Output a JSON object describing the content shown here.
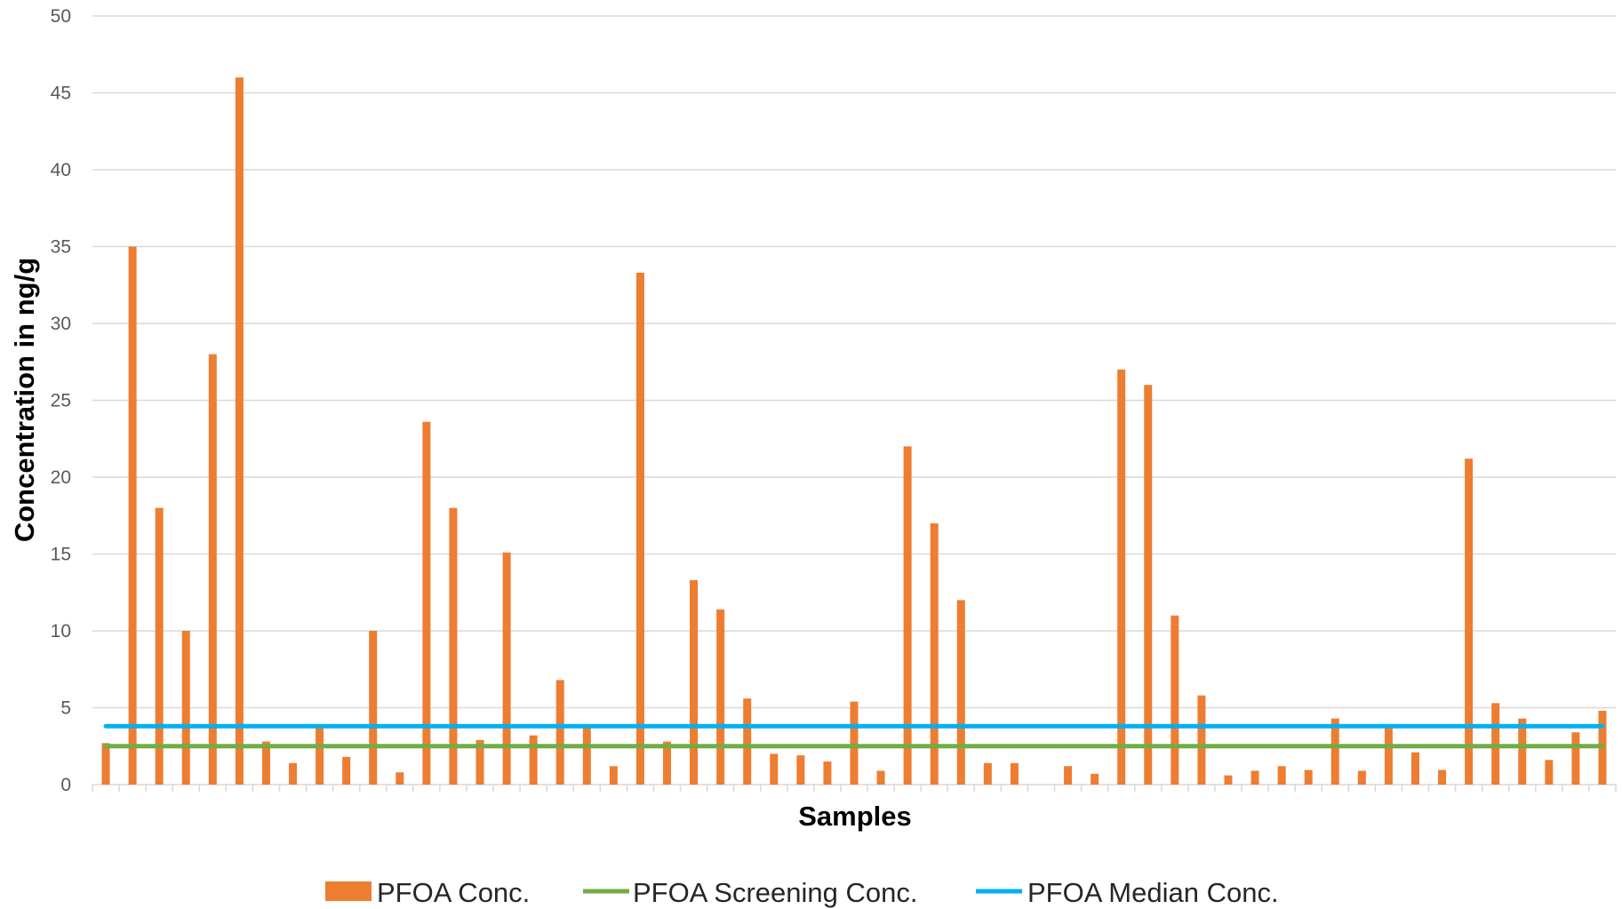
{
  "chart_data": {
    "type": "bar",
    "xlabel": "Samples",
    "ylabel": "Concentration in ng/g",
    "ylim": [
      0,
      50
    ],
    "yticks": [
      0,
      5,
      10,
      15,
      20,
      25,
      30,
      35,
      40,
      45,
      50
    ],
    "grid": "horizontal",
    "legend_position": "bottom",
    "series": [
      {
        "name": "PFOA Conc.",
        "kind": "bar",
        "color": "#ED7D31",
        "values": [
          2.7,
          35,
          18,
          10,
          28,
          46,
          2.8,
          1.4,
          3.7,
          1.8,
          10,
          0.8,
          23.6,
          18,
          2.9,
          15.1,
          3.2,
          6.8,
          3.7,
          1.2,
          33.3,
          2.8,
          13.3,
          11.4,
          5.6,
          2.0,
          1.9,
          1.5,
          5.4,
          0.9,
          22,
          17,
          12,
          1.4,
          1.4,
          0,
          1.2,
          0.7,
          27,
          26,
          11,
          5.8,
          0.6,
          0.9,
          1.2,
          0.95,
          4.3,
          0.9,
          3.8,
          2.1,
          0.95,
          21.2,
          5.3,
          4.3,
          1.6,
          3.4,
          4.8
        ]
      },
      {
        "name": "PFOA Screening Conc.",
        "kind": "line",
        "color": "#70AD47",
        "value": 2.5
      },
      {
        "name": "PFOA Median Conc.",
        "kind": "line",
        "color": "#00B0F0",
        "value": 3.8
      }
    ]
  },
  "legend": {
    "bar_label": "PFOA Conc.",
    "screening_label": "PFOA Screening Conc.",
    "median_label": "PFOA Median Conc."
  }
}
